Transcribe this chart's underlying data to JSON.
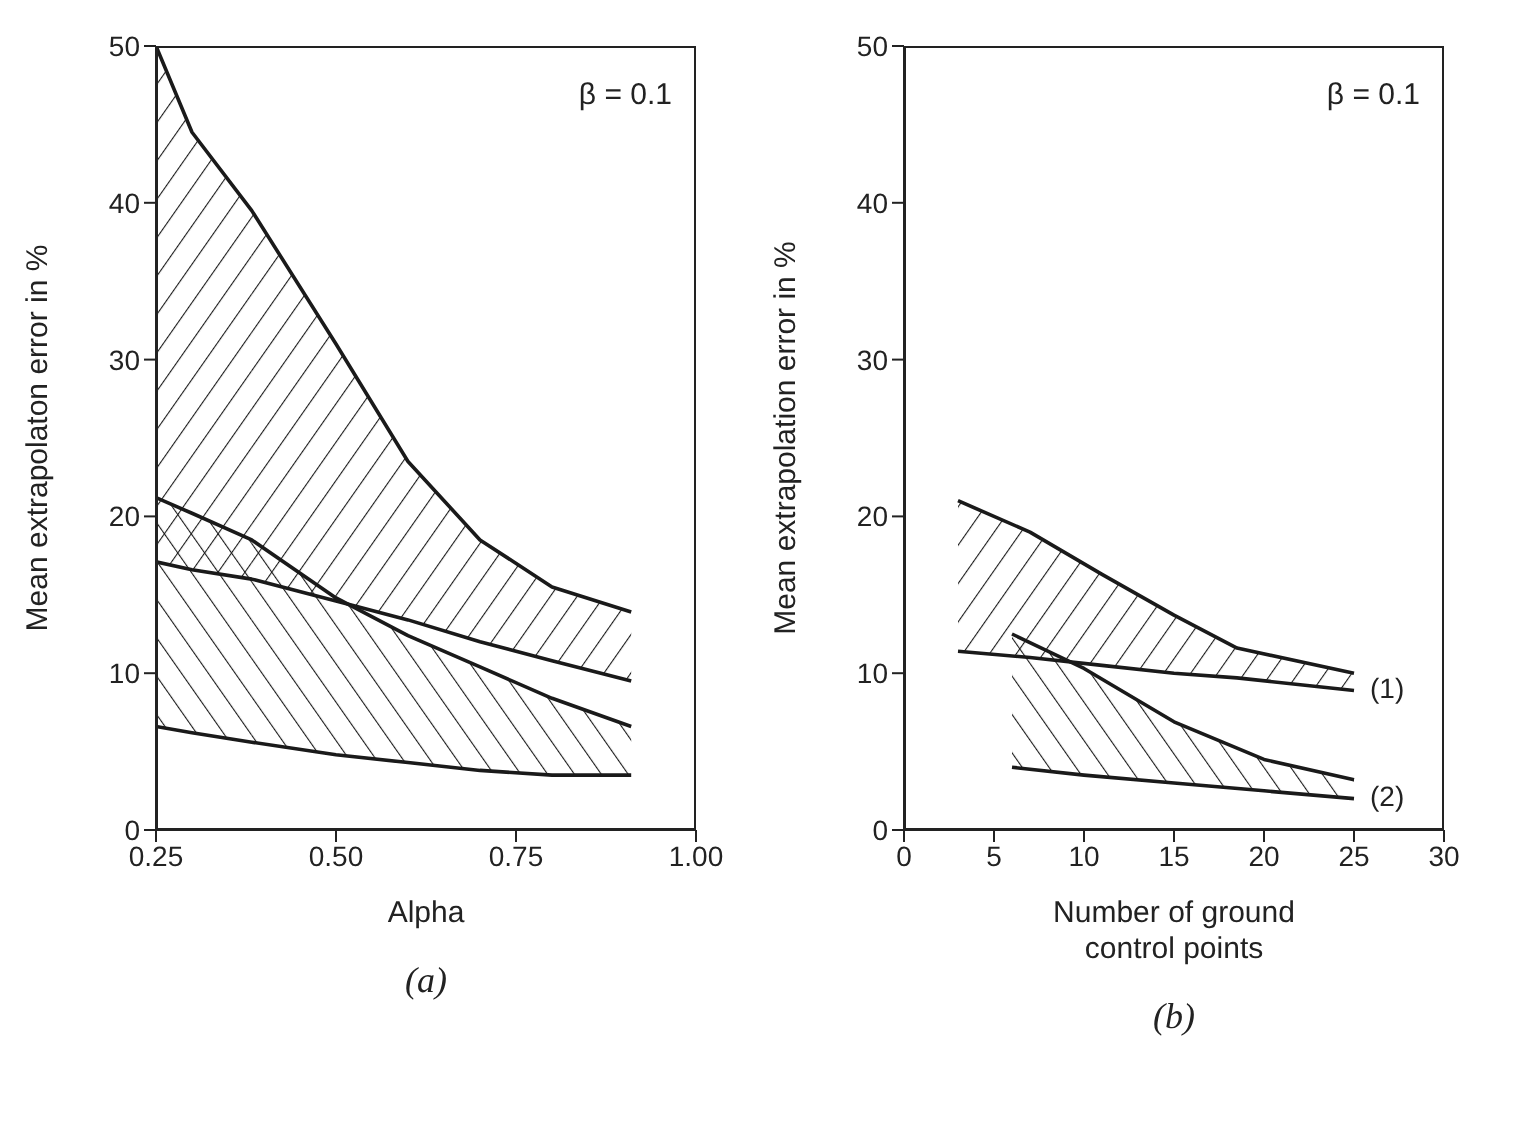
{
  "chart_data": [
    {
      "type": "line",
      "xlabel": "Alpha",
      "ylabel": "Mean extrapolaton error in %",
      "annotations": [
        "β = 0.1",
        "(a)"
      ],
      "xlim": [
        0.25,
        1.0
      ],
      "xticks": [
        {
          "value": 0.25,
          "label": "0.25"
        },
        {
          "value": 0.5,
          "label": "0.50"
        },
        {
          "value": 0.75,
          "label": "0.75"
        },
        {
          "value": 1.0,
          "label": "1.00"
        }
      ],
      "ylim": [
        0,
        50
      ],
      "yticks": [
        0,
        10,
        20,
        30,
        40,
        50
      ],
      "x": [
        0.25,
        0.3,
        0.383,
        0.5,
        0.6,
        0.7,
        0.8,
        0.91
      ],
      "series": [
        {
          "color": "#1a1a1a",
          "values": [
            50,
            44.5,
            39.5,
            31,
            23.5,
            18.5,
            15.5,
            13.9
          ]
        },
        {
          "color": "#1a1a1a",
          "values": [
            17.1,
            16.6,
            16,
            14.6,
            13.4,
            12,
            10.8,
            9.5
          ]
        },
        {
          "color": "#1a1a1a",
          "values": [
            21.2,
            20.2,
            18.5,
            14.8,
            12.4,
            10.4,
            8.4,
            6.6
          ]
        },
        {
          "color": "#1a1a1a",
          "values": [
            6.6,
            6.2,
            5.6,
            4.8,
            4.3,
            3.8,
            3.5,
            3.5
          ]
        }
      ]
    },
    {
      "type": "line",
      "xlabel": "Number of ground control points",
      "ylabel": "Mean extrapolation error in %",
      "annotations": [
        "β = 0.1",
        "(b)"
      ],
      "xlim": [
        0,
        30
      ],
      "xticks": [
        0,
        5,
        10,
        15,
        20,
        25,
        30
      ],
      "ylim": [
        0,
        50
      ],
      "yticks": [
        0,
        10,
        20,
        30,
        40,
        50
      ],
      "series": [
        {
          "color": "#1a1a1a",
          "x": [
            3,
            7,
            11,
            15,
            18.5,
            25
          ],
          "values": [
            21,
            19,
            16.3,
            13.7,
            11.6,
            10
          ]
        },
        {
          "name": "(1)",
          "color": "#1a1a1a",
          "x": [
            3,
            7,
            11,
            15,
            18.5,
            25
          ],
          "values": [
            11.4,
            11,
            10.5,
            10,
            9.7,
            8.9
          ]
        },
        {
          "color": "#1a1a1a",
          "x": [
            6,
            10,
            15,
            20,
            25
          ],
          "values": [
            12.5,
            10.3,
            6.9,
            4.5,
            3.2
          ]
        },
        {
          "name": "(2)",
          "color": "#1a1a1a",
          "x": [
            6,
            10,
            15,
            20,
            25
          ],
          "values": [
            4,
            3.5,
            3,
            2.5,
            2
          ]
        }
      ]
    }
  ]
}
